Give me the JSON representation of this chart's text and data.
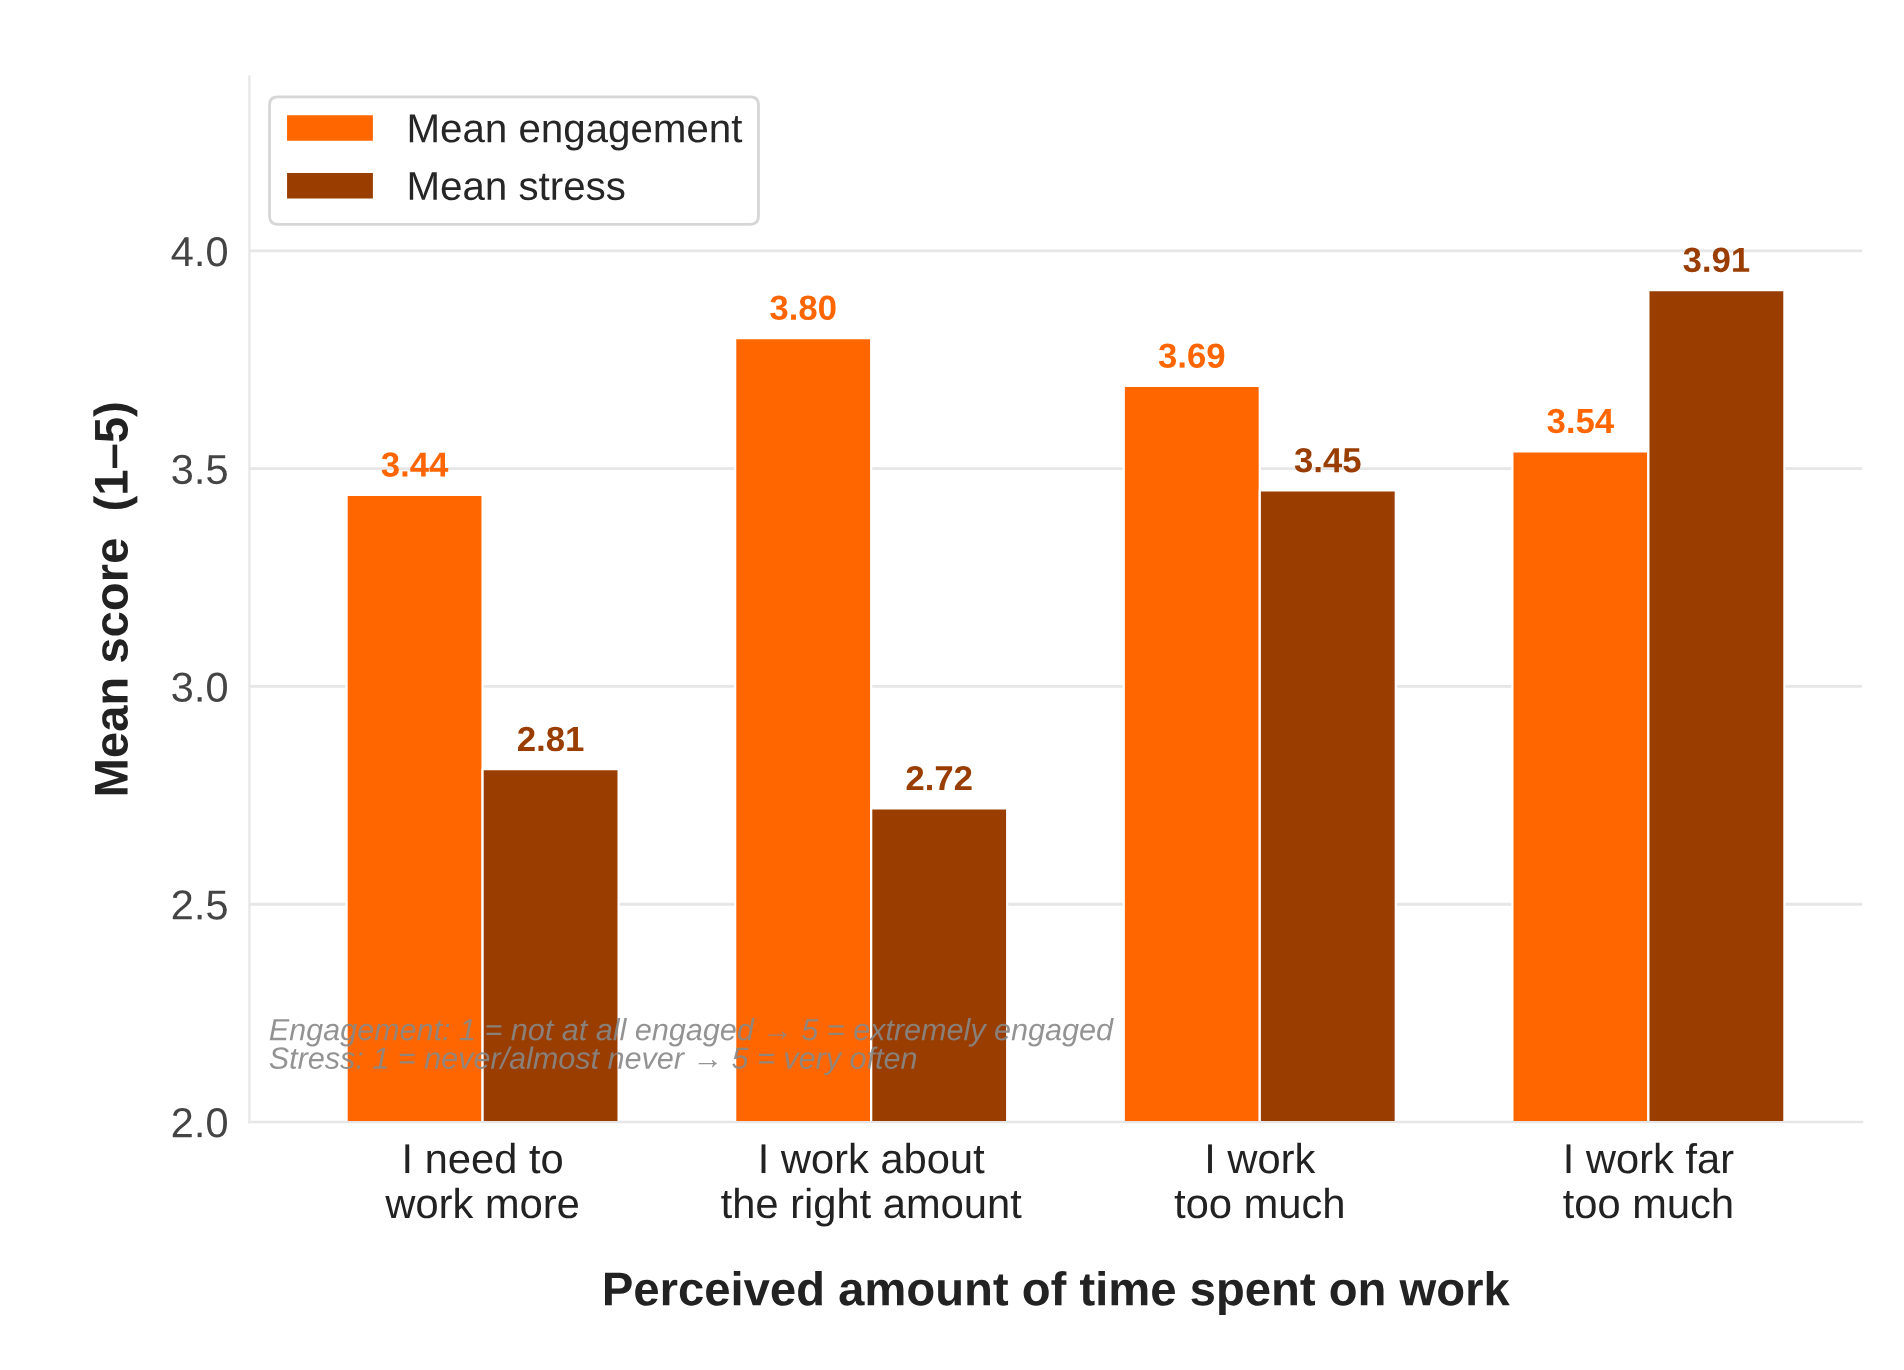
{
  "chart_data": {
    "type": "bar",
    "xlabel": "Perceived amount of time spent on work",
    "ylabel": "Mean score  (1–5)",
    "categories": [
      "I need to\nwork more",
      "I work about\nthe right amount",
      "I work\ntoo much",
      "I work far\ntoo much"
    ],
    "series": [
      {
        "name": "Mean engagement",
        "color": "#ff6600",
        "values": [
          3.44,
          3.8,
          3.69,
          3.54
        ],
        "value_labels": [
          "3.44",
          "3.80",
          "3.69",
          "3.54"
        ]
      },
      {
        "name": "Mean stress",
        "color": "#993d00",
        "values": [
          2.81,
          2.72,
          3.45,
          3.91
        ],
        "value_labels": [
          "2.81",
          "2.72",
          "3.45",
          "3.91"
        ]
      }
    ],
    "ylim": [
      2.0,
      4.4
    ],
    "yticks": [
      {
        "value": 2.0,
        "label": "2.0"
      },
      {
        "value": 2.5,
        "label": "2.5"
      },
      {
        "value": 3.0,
        "label": "3.0"
      },
      {
        "value": 3.5,
        "label": "3.5"
      },
      {
        "value": 4.0,
        "label": "4.0"
      }
    ],
    "grid": "y",
    "legend": "top left",
    "annotations": [
      "Engagement: 1 = not at all engaged → 5 = extremely engaged\nStress: 1 = never/almost never → 5 = very often"
    ]
  }
}
